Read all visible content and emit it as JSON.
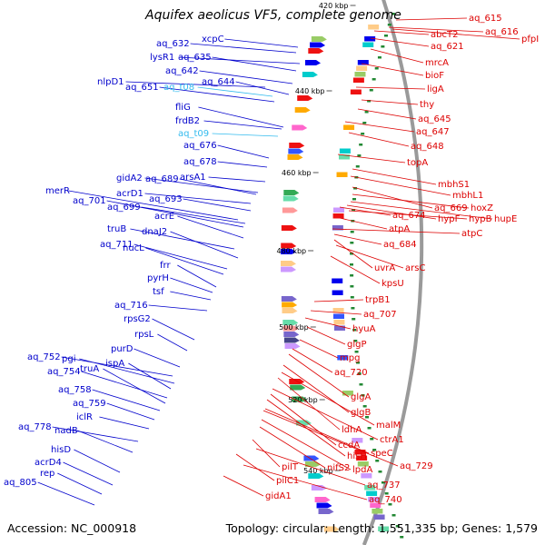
{
  "title": "Aquifex aeolicus VF5, complete genome",
  "footer": {
    "accession": "Accession: NC_000918",
    "topology": "Topology: circular; Length: 1,551,335 bp; Genes: 1,579"
  },
  "colors": {
    "left_label": "#0000cc",
    "right_label": "#dd0000",
    "trna_label": "#33bbee",
    "backbone": "#9a9a9a",
    "tick": "#228833"
  },
  "kbp_ticks": [
    "420 kbp",
    "440 kbp",
    "460 kbp",
    "480 kbp",
    "500 kbp",
    "520 kbp",
    "540 kbp"
  ],
  "left_labels": [
    {
      "text": "aq_632",
      "kind": "gene"
    },
    {
      "text": "xcpC",
      "kind": "gene"
    },
    {
      "text": "lysR1",
      "kind": "gene"
    },
    {
      "text": "aq_635",
      "kind": "gene"
    },
    {
      "text": "aq_642",
      "kind": "gene"
    },
    {
      "text": "nlpD1",
      "kind": "gene"
    },
    {
      "text": "aq_644",
      "kind": "gene"
    },
    {
      "text": "aq_651",
      "kind": "gene"
    },
    {
      "text": "aq_t08",
      "kind": "trna"
    },
    {
      "text": "fliG",
      "kind": "gene"
    },
    {
      "text": "frdB2",
      "kind": "gene"
    },
    {
      "text": "aq_t09",
      "kind": "trna"
    },
    {
      "text": "aq_676",
      "kind": "gene"
    },
    {
      "text": "aq_678",
      "kind": "gene"
    },
    {
      "text": "arsA1",
      "kind": "gene"
    },
    {
      "text": "gidA2",
      "kind": "gene"
    },
    {
      "text": "aq_689",
      "kind": "gene"
    },
    {
      "text": "merR",
      "kind": "gene"
    },
    {
      "text": "acrD1",
      "kind": "gene"
    },
    {
      "text": "aq_693",
      "kind": "gene"
    },
    {
      "text": "aq_701",
      "kind": "gene"
    },
    {
      "text": "aq_699",
      "kind": "gene"
    },
    {
      "text": "acrE",
      "kind": "gene"
    },
    {
      "text": "truB",
      "kind": "gene"
    },
    {
      "text": "dnaJ2",
      "kind": "gene"
    },
    {
      "text": "aq_711",
      "kind": "gene"
    },
    {
      "text": "nucL",
      "kind": "gene"
    },
    {
      "text": "frr",
      "kind": "gene"
    },
    {
      "text": "pyrH",
      "kind": "gene"
    },
    {
      "text": "tsf",
      "kind": "gene"
    },
    {
      "text": "aq_716",
      "kind": "gene"
    },
    {
      "text": "rpsG2",
      "kind": "gene"
    },
    {
      "text": "rpsL",
      "kind": "gene"
    },
    {
      "text": "purD",
      "kind": "gene"
    },
    {
      "text": "aq_752",
      "kind": "gene"
    },
    {
      "text": "pgi",
      "kind": "gene"
    },
    {
      "text": "ispA",
      "kind": "gene"
    },
    {
      "text": "aq_754",
      "kind": "gene"
    },
    {
      "text": "truA",
      "kind": "gene"
    },
    {
      "text": "aq_758",
      "kind": "gene"
    },
    {
      "text": "aq_759",
      "kind": "gene"
    },
    {
      "text": "iclR",
      "kind": "gene"
    },
    {
      "text": "aq_778",
      "kind": "gene"
    },
    {
      "text": "nadB",
      "kind": "gene"
    },
    {
      "text": "hisD",
      "kind": "gene"
    },
    {
      "text": "acrD4",
      "kind": "gene"
    },
    {
      "text": "rep",
      "kind": "gene"
    },
    {
      "text": "aq_805",
      "kind": "gene"
    }
  ],
  "right_labels": [
    "aq_615",
    "aq_616",
    "abcT2",
    "pfpI",
    "aq_621",
    "mrcA",
    "bioF",
    "ligA",
    "thy",
    "aq_645",
    "aq_647",
    "aq_648",
    "topA",
    "mbhS1",
    "mbhL1",
    "aq_669",
    "hoxZ",
    "hupE",
    "aq_674",
    "hypF",
    "hypB",
    "atpA",
    "atpC",
    "aq_684",
    "uvrA",
    "arsC",
    "kpsU",
    "trpB1",
    "aq_707",
    "hyuA",
    "glgP",
    "mpg",
    "aq_720",
    "glgA",
    "glgB",
    "malM",
    "ldhA",
    "ctrA1",
    "ccdA",
    "hisH",
    "speC",
    "aq_729",
    "lpdA",
    "nifS2",
    "pilT",
    "aq_737",
    "pilC1",
    "aq_740",
    "gidA1"
  ]
}
